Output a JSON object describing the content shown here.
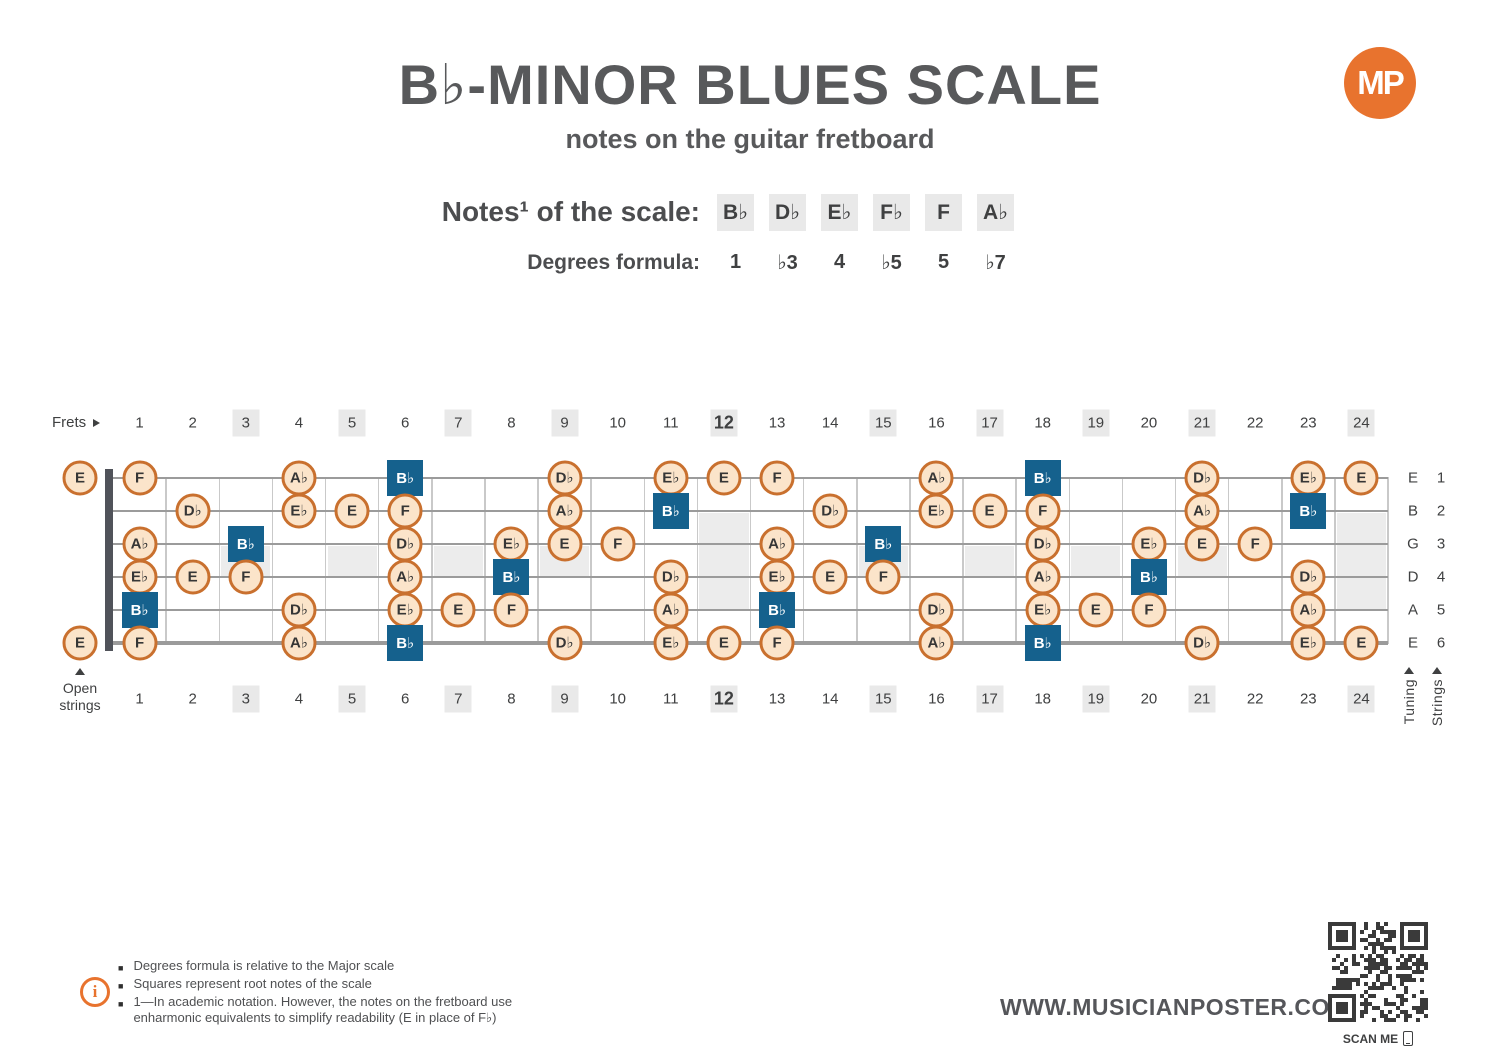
{
  "header": {
    "title": "B♭-MINOR BLUES SCALE",
    "subtitle": "notes on the guitar fretboard",
    "logo_text": "MP"
  },
  "scale": {
    "notes_label": "Notes¹ of the scale:",
    "notes": [
      "B♭",
      "D♭",
      "E♭",
      "F♭",
      "F",
      "A♭"
    ],
    "degrees_label": "Degrees formula:",
    "degrees": [
      "1",
      "♭3",
      "4",
      "♭5",
      "5",
      "♭7"
    ]
  },
  "fretboard": {
    "frets_label": "Frets",
    "open_strings_label": "Open strings",
    "tuning_label": "Tuning",
    "strings_label": "Strings",
    "fret_count": 24,
    "highlighted_frets": [
      3,
      5,
      7,
      9,
      12,
      15,
      17,
      19,
      21,
      24
    ],
    "bold_fret": 12,
    "single_marker_frets": [
      3,
      5,
      7,
      9,
      15,
      17,
      19,
      21
    ],
    "double_marker_frets": [
      12,
      24
    ],
    "strings": [
      {
        "number": 1,
        "tuning": "E",
        "open_note": "E",
        "notes": [
          {
            "fret": 1,
            "note": "F"
          },
          {
            "fret": 4,
            "note": "A♭"
          },
          {
            "fret": 6,
            "note": "B♭",
            "root": true
          },
          {
            "fret": 9,
            "note": "D♭"
          },
          {
            "fret": 11,
            "note": "E♭"
          },
          {
            "fret": 12,
            "note": "E"
          },
          {
            "fret": 13,
            "note": "F"
          },
          {
            "fret": 16,
            "note": "A♭"
          },
          {
            "fret": 18,
            "note": "B♭",
            "root": true
          },
          {
            "fret": 21,
            "note": "D♭"
          },
          {
            "fret": 23,
            "note": "E♭"
          },
          {
            "fret": 24,
            "note": "E"
          }
        ]
      },
      {
        "number": 2,
        "tuning": "B",
        "open_note": null,
        "notes": [
          {
            "fret": 2,
            "note": "D♭"
          },
          {
            "fret": 4,
            "note": "E♭"
          },
          {
            "fret": 5,
            "note": "E"
          },
          {
            "fret": 6,
            "note": "F"
          },
          {
            "fret": 9,
            "note": "A♭"
          },
          {
            "fret": 11,
            "note": "B♭",
            "root": true
          },
          {
            "fret": 14,
            "note": "D♭"
          },
          {
            "fret": 16,
            "note": "E♭"
          },
          {
            "fret": 17,
            "note": "E"
          },
          {
            "fret": 18,
            "note": "F"
          },
          {
            "fret": 21,
            "note": "A♭"
          },
          {
            "fret": 23,
            "note": "B♭",
            "root": true
          }
        ]
      },
      {
        "number": 3,
        "tuning": "G",
        "open_note": null,
        "notes": [
          {
            "fret": 1,
            "note": "A♭"
          },
          {
            "fret": 3,
            "note": "B♭",
            "root": true
          },
          {
            "fret": 6,
            "note": "D♭"
          },
          {
            "fret": 8,
            "note": "E♭"
          },
          {
            "fret": 9,
            "note": "E"
          },
          {
            "fret": 10,
            "note": "F"
          },
          {
            "fret": 13,
            "note": "A♭"
          },
          {
            "fret": 15,
            "note": "B♭",
            "root": true
          },
          {
            "fret": 18,
            "note": "D♭"
          },
          {
            "fret": 20,
            "note": "E♭"
          },
          {
            "fret": 21,
            "note": "E"
          },
          {
            "fret": 22,
            "note": "F"
          }
        ]
      },
      {
        "number": 4,
        "tuning": "D",
        "open_note": null,
        "notes": [
          {
            "fret": 1,
            "note": "E♭"
          },
          {
            "fret": 2,
            "note": "E"
          },
          {
            "fret": 3,
            "note": "F"
          },
          {
            "fret": 6,
            "note": "A♭"
          },
          {
            "fret": 8,
            "note": "B♭",
            "root": true
          },
          {
            "fret": 11,
            "note": "D♭"
          },
          {
            "fret": 13,
            "note": "E♭"
          },
          {
            "fret": 14,
            "note": "E"
          },
          {
            "fret": 15,
            "note": "F"
          },
          {
            "fret": 18,
            "note": "A♭"
          },
          {
            "fret": 20,
            "note": "B♭",
            "root": true
          },
          {
            "fret": 23,
            "note": "D♭"
          }
        ]
      },
      {
        "number": 5,
        "tuning": "A",
        "open_note": null,
        "notes": [
          {
            "fret": 1,
            "note": "B♭",
            "root": true
          },
          {
            "fret": 4,
            "note": "D♭"
          },
          {
            "fret": 6,
            "note": "E♭"
          },
          {
            "fret": 7,
            "note": "E"
          },
          {
            "fret": 8,
            "note": "F"
          },
          {
            "fret": 11,
            "note": "A♭"
          },
          {
            "fret": 13,
            "note": "B♭",
            "root": true
          },
          {
            "fret": 16,
            "note": "D♭"
          },
          {
            "fret": 18,
            "note": "E♭"
          },
          {
            "fret": 19,
            "note": "E"
          },
          {
            "fret": 20,
            "note": "F"
          },
          {
            "fret": 23,
            "note": "A♭"
          }
        ]
      },
      {
        "number": 6,
        "tuning": "E",
        "open_note": "E",
        "notes": [
          {
            "fret": 1,
            "note": "F"
          },
          {
            "fret": 4,
            "note": "A♭"
          },
          {
            "fret": 6,
            "note": "B♭",
            "root": true
          },
          {
            "fret": 9,
            "note": "D♭"
          },
          {
            "fret": 11,
            "note": "E♭"
          },
          {
            "fret": 12,
            "note": "E"
          },
          {
            "fret": 13,
            "note": "F"
          },
          {
            "fret": 16,
            "note": "A♭"
          },
          {
            "fret": 18,
            "note": "B♭",
            "root": true
          },
          {
            "fret": 21,
            "note": "D♭"
          },
          {
            "fret": 23,
            "note": "E♭"
          },
          {
            "fret": 24,
            "note": "E"
          }
        ]
      }
    ]
  },
  "footer": {
    "info_lines": [
      "Degrees formula is relative to the Major scale",
      "Squares represent root notes of the scale",
      "1—In academic notation. However, the notes on the fretboard use enharmonic equivalents to simplify readability (E in place of F♭)"
    ],
    "website": "WWW.MUSICIANPOSTER.COM",
    "scan_me_label": "SCAN ME"
  },
  "colors": {
    "accent_orange": "#e8732e",
    "root_blue": "#15618d",
    "note_fill": "#fbe4ca",
    "note_border": "#c9702e",
    "highlight_gray": "#e9e9e9",
    "inlay_gray": "#ececec",
    "title_gray": "#58595b",
    "string_gray": "#9b9b9b",
    "fretwire_gray": "#c9c9c9",
    "nut_gray": "#50535a"
  }
}
